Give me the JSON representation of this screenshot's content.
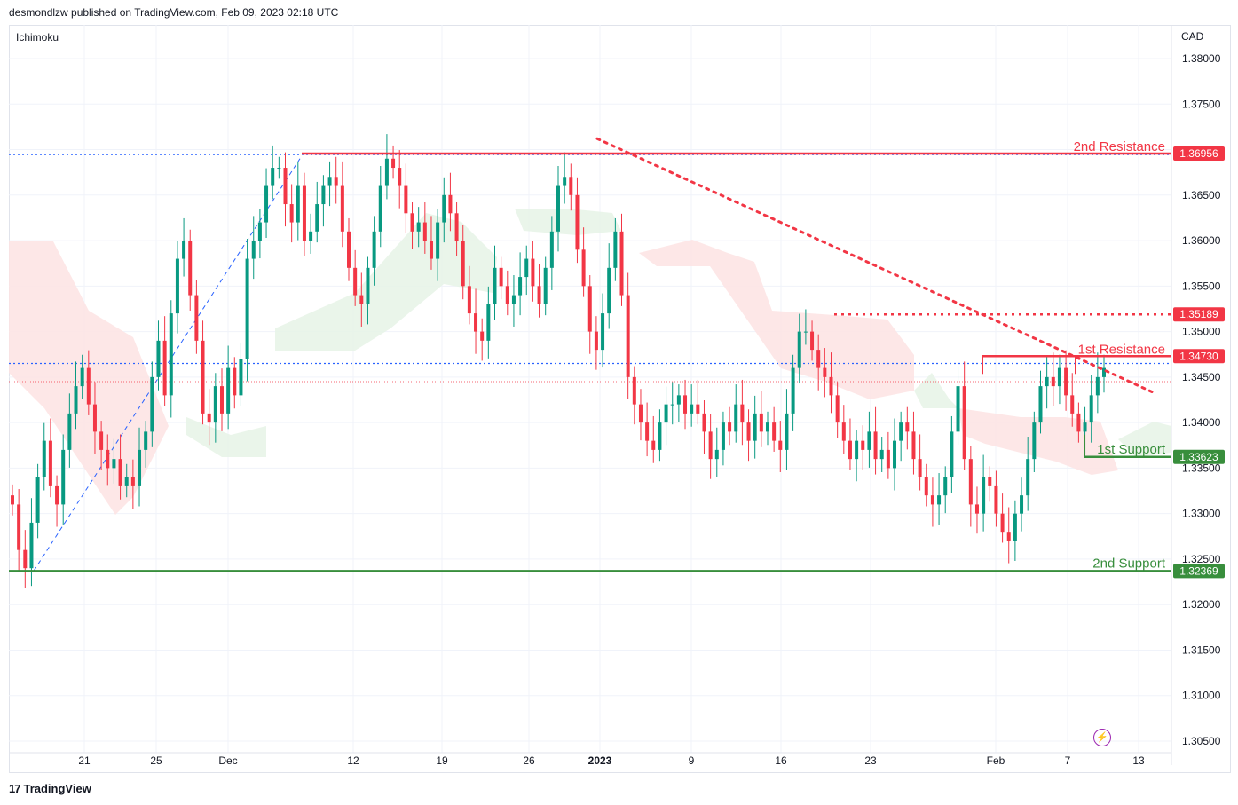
{
  "header": {
    "published": "desmondlzw published on TradingView.com, Feb 09, 2023 02:18 UTC",
    "indicator": "Ichimoku",
    "currency": "CAD"
  },
  "footer": {
    "brand": "TradingView",
    "logo_icon": "tradingview-logo-icon"
  },
  "colors": {
    "resistance": "#f23645",
    "support": "#388e3c",
    "dotted_blue": "#2962ff",
    "bull": "#089981",
    "bear": "#f23645",
    "cloud_red": "#fde3e3",
    "cloud_green": "#e6f3e6",
    "grid": "#f0f3fa"
  },
  "chart_data": {
    "type": "candlestick",
    "ylim": [
      1.3025,
      1.3825
    ],
    "y_ticks": [
      "1.38000",
      "1.37500",
      "1.37000",
      "1.36500",
      "1.36000",
      "1.35500",
      "1.35000",
      "1.34500",
      "1.34000",
      "1.33500",
      "1.33000",
      "1.32500",
      "1.32000",
      "1.31500",
      "1.31000",
      "1.30500"
    ],
    "x_ticks": [
      "21",
      "25",
      "Dec",
      "12",
      "19",
      "26",
      "2023",
      "9",
      "16",
      "23",
      "Feb",
      "7",
      "13"
    ],
    "levels": [
      {
        "name": "2nd Resistance",
        "value": 1.36956,
        "label": "1.36956",
        "kind": "resistance"
      },
      {
        "name": "",
        "value": 1.35189,
        "label": "1.35189",
        "kind": "resistance-dotted"
      },
      {
        "name": "1st Resistance",
        "value": 1.3473,
        "label": "1.34730",
        "kind": "resistance"
      },
      {
        "name": "1st Support",
        "value": 1.33623,
        "label": "1.33623",
        "kind": "support"
      },
      {
        "name": "2nd Support",
        "value": 1.32369,
        "label": "1.32369",
        "kind": "support"
      }
    ],
    "close_path": [
      1.331,
      1.326,
      1.324,
      1.329,
      1.334,
      1.338,
      1.333,
      1.331,
      1.337,
      1.341,
      1.344,
      1.346,
      1.342,
      1.339,
      1.337,
      1.335,
      1.336,
      1.333,
      1.334,
      1.333,
      1.337,
      1.339,
      1.345,
      1.349,
      1.343,
      1.352,
      1.358,
      1.36,
      1.354,
      1.349,
      1.341,
      1.34,
      1.344,
      1.341,
      1.346,
      1.343,
      1.347,
      1.358,
      1.36,
      1.362,
      1.366,
      1.368,
      1.368,
      1.364,
      1.362,
      1.366,
      1.36,
      1.361,
      1.364,
      1.366,
      1.367,
      1.366,
      1.361,
      1.357,
      1.354,
      1.353,
      1.357,
      1.361,
      1.366,
      1.369,
      1.368,
      1.366,
      1.363,
      1.361,
      1.362,
      1.36,
      1.358,
      1.362,
      1.365,
      1.363,
      1.36,
      1.355,
      1.352,
      1.35,
      1.349,
      1.353,
      1.357,
      1.355,
      1.353,
      1.354,
      1.356,
      1.358,
      1.355,
      1.353,
      1.357,
      1.361,
      1.366,
      1.367,
      1.365,
      1.359,
      1.355,
      1.35,
      1.348,
      1.352,
      1.357,
      1.361,
      1.354,
      1.345,
      1.342,
      1.34,
      1.338,
      1.337,
      1.34,
      1.342,
      1.342,
      1.343,
      1.341,
      1.342,
      1.341,
      1.339,
      1.336,
      1.337,
      1.34,
      1.339,
      1.342,
      1.34,
      1.338,
      1.341,
      1.339,
      1.34,
      1.338,
      1.337,
      1.341,
      1.346,
      1.35,
      1.35,
      1.348,
      1.346,
      1.345,
      1.343,
      1.34,
      1.338,
      1.336,
      1.338,
      1.337,
      1.339,
      1.336,
      1.337,
      1.335,
      1.338,
      1.34,
      1.339,
      1.336,
      1.334,
      1.332,
      1.331,
      1.332,
      1.334,
      1.339,
      1.344,
      1.336,
      1.331,
      1.33,
      1.334,
      1.333,
      1.33,
      1.328,
      1.327,
      1.33,
      1.332,
      1.336,
      1.34,
      1.344,
      1.345,
      1.344,
      1.346,
      1.343,
      1.341,
      1.339,
      1.34,
      1.343,
      1.345,
      1.346
    ],
    "trendline": {
      "from": [
        1.3712,
        0.49
      ],
      "to": [
        1.3432,
        0.94
      ]
    },
    "flash_icon": "lightning-icon"
  }
}
